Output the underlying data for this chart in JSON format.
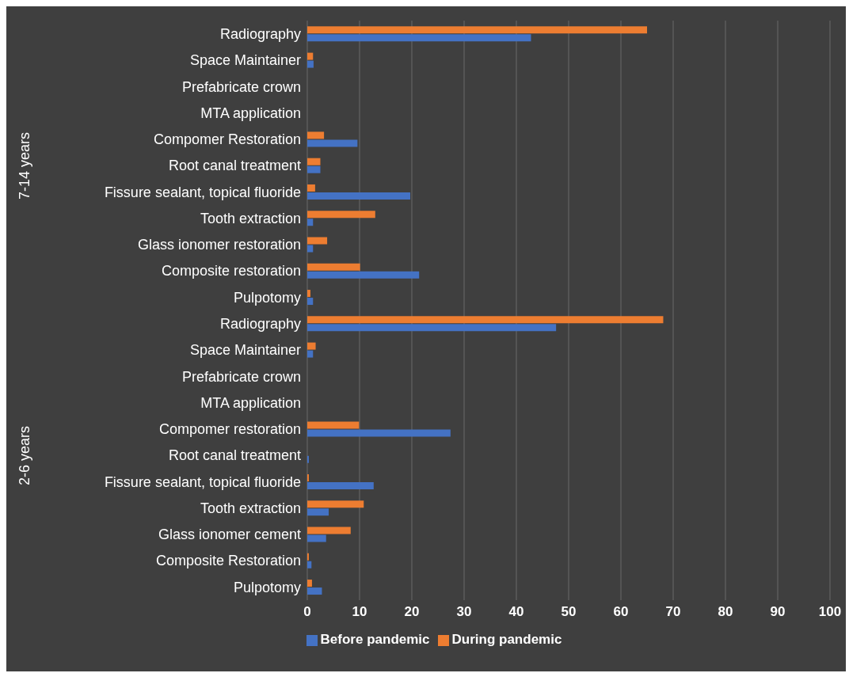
{
  "chart_data": {
    "type": "bar",
    "orientation": "horizontal",
    "categories": [
      "Radiography",
      "Space Maintainer",
      "Prefabricate crown",
      "MTA application",
      "Compomer Restoration",
      "Root canal treatment",
      "Fissure sealant, topical fluoride",
      "Tooth extraction",
      "Glass ionomer restoration",
      "Composite restoration",
      "Pulpotomy",
      "Radiography",
      "Space Maintainer",
      "Prefabricate crown",
      "MTA application",
      "Compomer restoration",
      "Root canal treatment",
      "Fissure sealant, topical fluoride",
      "Tooth extraction",
      "Glass ionomer cement",
      "Composite Restoration",
      "Pulpotomy"
    ],
    "series": [
      {
        "name": "During pandemic",
        "color": "#ed7d31",
        "values": [
          65,
          1.1,
          0,
          0,
          3.2,
          2.5,
          1.5,
          13,
          3.8,
          10.1,
          0.6,
          68.1,
          1.6,
          0,
          0,
          9.9,
          0,
          0.3,
          10.8,
          8.3,
          0.3,
          0.9
        ]
      },
      {
        "name": "Before pandemic",
        "color": "#4472c4",
        "values": [
          42.8,
          1.2,
          0,
          0,
          9.6,
          2.5,
          19.7,
          1.1,
          1.1,
          21.4,
          1.1,
          47.6,
          1.1,
          0,
          0,
          27.4,
          0.3,
          12.7,
          4.1,
          3.6,
          0.8,
          2.8
        ]
      }
    ],
    "xlim": [
      0,
      100
    ],
    "xticks": [
      0,
      10,
      20,
      30,
      40,
      50,
      60,
      70,
      80,
      90,
      100
    ],
    "grid": "x",
    "legend": "bottom",
    "annotations": [
      "7-14 years",
      "2-6 years"
    ]
  }
}
